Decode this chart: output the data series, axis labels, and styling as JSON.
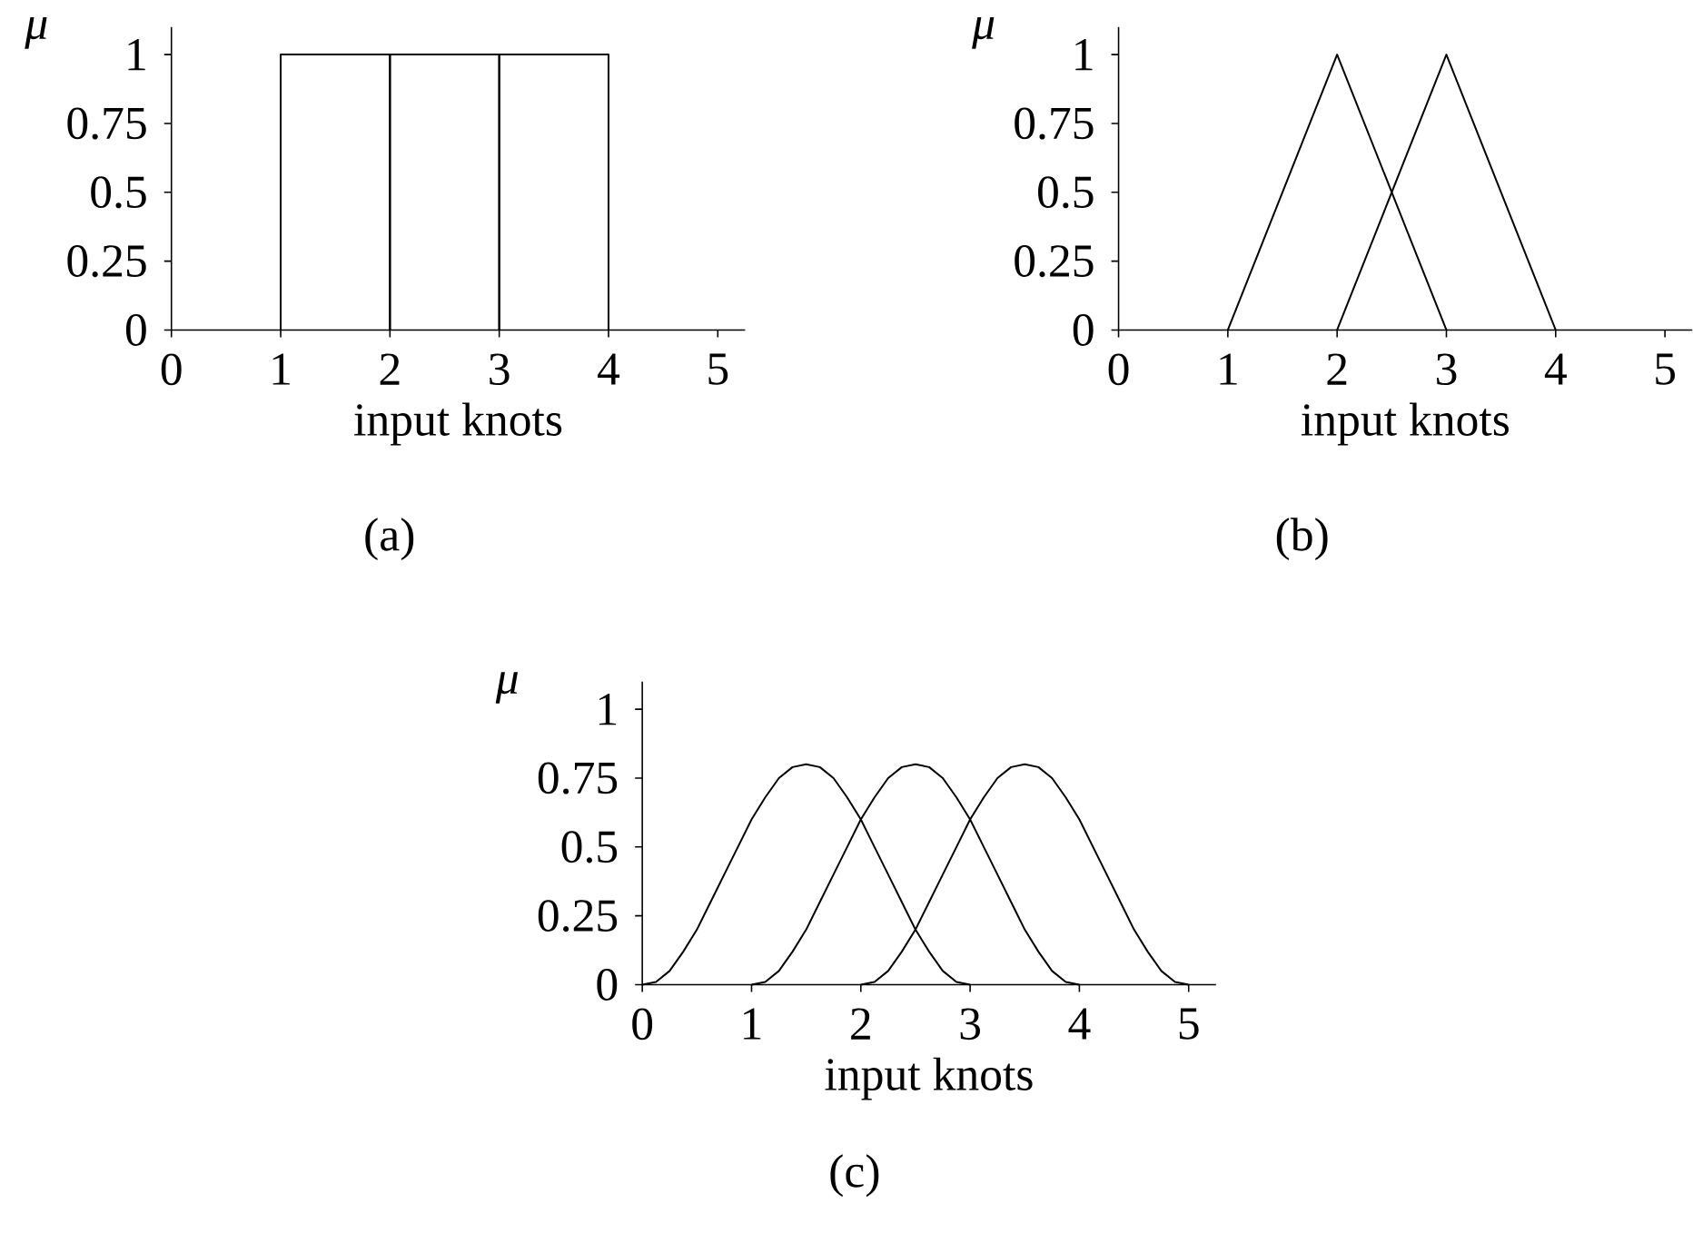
{
  "chart_data": [
    {
      "type": "line",
      "xlabel": "input knots",
      "ylabel": "μ",
      "annotations": [
        "(a)"
      ],
      "xlim": [
        0,
        5.25
      ],
      "ylim": [
        0,
        1.1
      ],
      "xticks": [
        0,
        1,
        2,
        3,
        4,
        5
      ],
      "yticks": [
        0,
        0.25,
        0.5,
        0.75,
        1
      ],
      "series": [
        {
          "color": "#000000",
          "x": [
            1,
            1,
            2,
            2
          ],
          "values": [
            0,
            1,
            1,
            0
          ]
        },
        {
          "color": "#000000",
          "x": [
            2,
            2,
            3,
            3
          ],
          "values": [
            0,
            1,
            1,
            0
          ]
        },
        {
          "color": "#000000",
          "x": [
            3,
            3,
            4,
            4
          ],
          "values": [
            0,
            1,
            1,
            0
          ]
        }
      ]
    },
    {
      "type": "line",
      "xlabel": "input knots",
      "ylabel": "μ",
      "annotations": [
        "(b)"
      ],
      "xlim": [
        0,
        5.25
      ],
      "ylim": [
        0,
        1.1
      ],
      "xticks": [
        0,
        1,
        2,
        3,
        4,
        5
      ],
      "yticks": [
        0,
        0.25,
        0.5,
        0.75,
        1
      ],
      "series": [
        {
          "color": "#000000",
          "x": [
            1,
            2,
            3
          ],
          "values": [
            0,
            1,
            0
          ]
        },
        {
          "color": "#000000",
          "x": [
            2,
            3,
            4
          ],
          "values": [
            0,
            1,
            0
          ]
        }
      ]
    },
    {
      "type": "line",
      "xlabel": "input knots",
      "ylabel": "μ",
      "annotations": [
        "(c)"
      ],
      "xlim": [
        0,
        5.25
      ],
      "ylim": [
        0,
        1.1
      ],
      "xticks": [
        0,
        1,
        2,
        3,
        4,
        5
      ],
      "yticks": [
        0,
        0.25,
        0.5,
        0.75,
        1
      ],
      "series": [
        {
          "color": "#000000",
          "x": [
            0,
            0.125,
            0.25,
            0.375,
            0.5,
            0.625,
            0.75,
            0.875,
            1,
            1.125,
            1.25,
            1.375,
            1.5,
            1.625,
            1.75,
            1.875,
            2,
            2.125,
            2.25,
            2.375,
            2.5,
            2.625,
            2.75,
            2.875,
            3
          ],
          "values": [
            0,
            0.01,
            0.05,
            0.12,
            0.2,
            0.3,
            0.4,
            0.5,
            0.6,
            0.68,
            0.75,
            0.79,
            0.8,
            0.79,
            0.75,
            0.68,
            0.6,
            0.5,
            0.4,
            0.3,
            0.2,
            0.12,
            0.05,
            0.01,
            0
          ]
        },
        {
          "color": "#000000",
          "x": [
            1,
            1.125,
            1.25,
            1.375,
            1.5,
            1.625,
            1.75,
            1.875,
            2,
            2.125,
            2.25,
            2.375,
            2.5,
            2.625,
            2.75,
            2.875,
            3,
            3.125,
            3.25,
            3.375,
            3.5,
            3.625,
            3.75,
            3.875,
            4
          ],
          "values": [
            0,
            0.01,
            0.05,
            0.12,
            0.2,
            0.3,
            0.4,
            0.5,
            0.6,
            0.68,
            0.75,
            0.79,
            0.8,
            0.79,
            0.75,
            0.68,
            0.6,
            0.5,
            0.4,
            0.3,
            0.2,
            0.12,
            0.05,
            0.01,
            0
          ]
        },
        {
          "color": "#000000",
          "x": [
            2,
            2.125,
            2.25,
            2.375,
            2.5,
            2.625,
            2.75,
            2.875,
            3,
            3.125,
            3.25,
            3.375,
            3.5,
            3.625,
            3.75,
            3.875,
            4,
            4.125,
            4.25,
            4.375,
            4.5,
            4.625,
            4.75,
            4.875,
            5
          ],
          "values": [
            0,
            0.01,
            0.05,
            0.12,
            0.2,
            0.3,
            0.4,
            0.5,
            0.6,
            0.68,
            0.75,
            0.79,
            0.8,
            0.79,
            0.75,
            0.68,
            0.6,
            0.5,
            0.4,
            0.3,
            0.2,
            0.12,
            0.05,
            0.01,
            0
          ]
        }
      ]
    }
  ]
}
